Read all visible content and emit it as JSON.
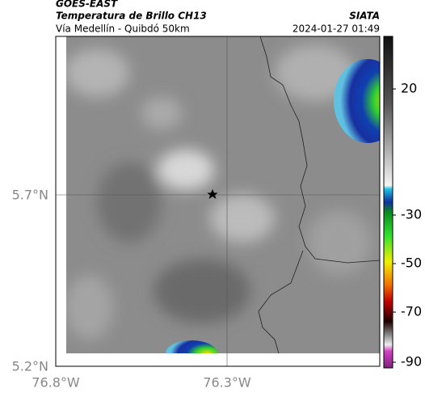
{
  "header": {
    "source": "GOES-EAST",
    "product": "Temperatura de Brillo CH13",
    "route": "Vía Medellín - Quibdó 50km",
    "agency": "SIATA",
    "timestamp": "2024-01-27 01:49"
  },
  "map": {
    "lat_labels": [
      "5.7°N",
      "5.2°N"
    ],
    "lon_labels": [
      "76.8°W",
      "76.3°W"
    ]
  },
  "colorbar": {
    "ticks": [
      20,
      -30,
      -50,
      -70,
      -90
    ]
  }
}
